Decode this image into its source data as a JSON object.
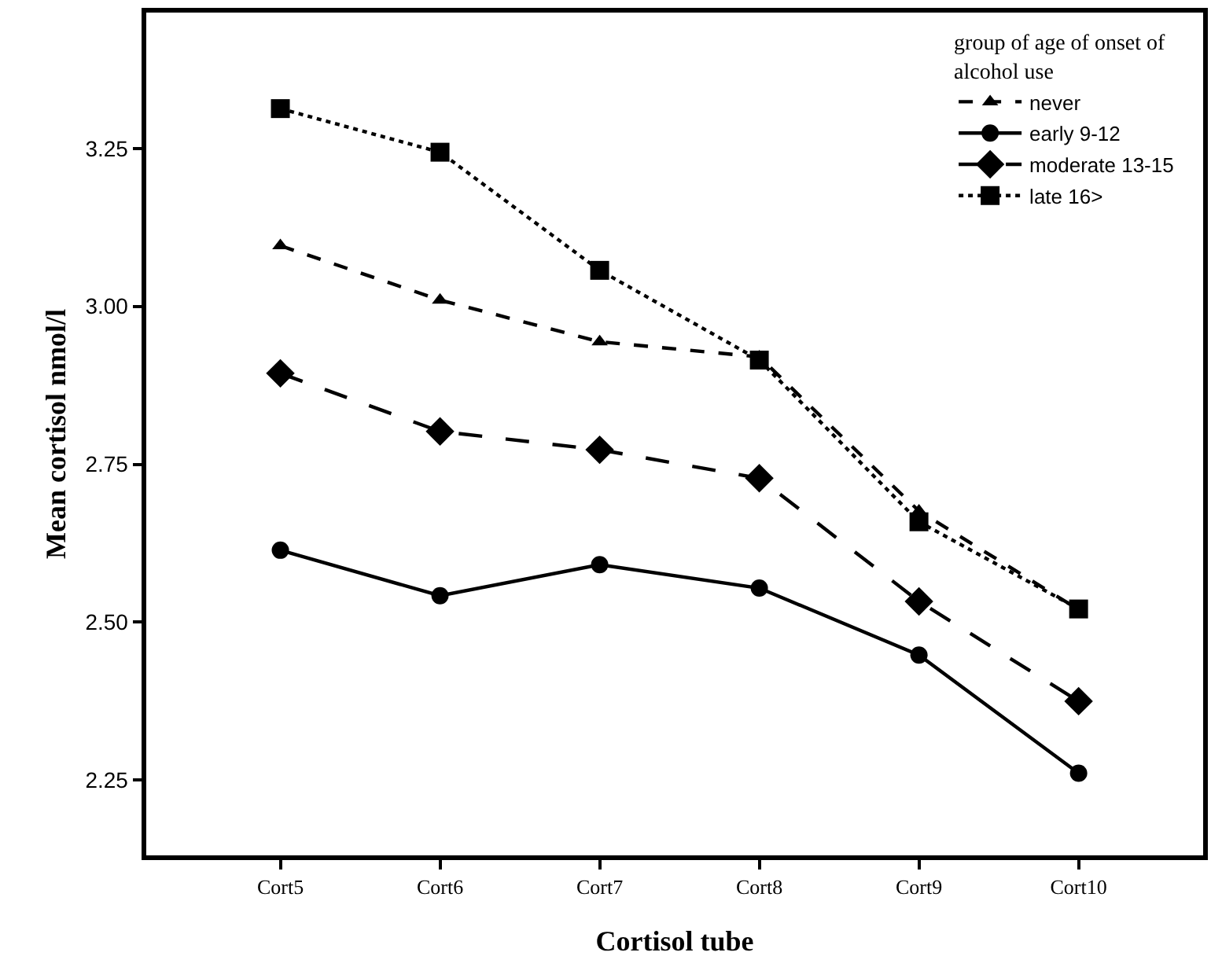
{
  "chart_data": {
    "type": "line",
    "xlabel": "Cortisol tube",
    "ylabel": "Mean cortisol nmol/l",
    "legend_title": "group of age of onset of alcohol use",
    "categories": [
      "Cort5",
      "Cort6",
      "Cort7",
      "Cort8",
      "Cort9",
      "Cort10"
    ],
    "ylim": [
      2.131,
      3.465
    ],
    "yticks": [
      {
        "value": 2.25,
        "label": "2.25"
      },
      {
        "value": 2.5,
        "label": "2.50"
      },
      {
        "value": 2.75,
        "label": "2.75"
      },
      {
        "value": 3.0,
        "label": "3.00"
      },
      {
        "value": 3.25,
        "label": "3.25"
      }
    ],
    "legend": "top right",
    "series": [
      {
        "name": "never",
        "color": "#000000",
        "marker": "triangle",
        "line_style": "dashed",
        "values": [
          3.096,
          3.01,
          2.944,
          2.92,
          2.676,
          2.52
        ]
      },
      {
        "name": "early 9-12",
        "color": "#000000",
        "marker": "circle",
        "line_style": "solid",
        "values": [
          2.614,
          2.542,
          2.591,
          2.554,
          2.448,
          2.261
        ]
      },
      {
        "name": "moderate 13-15",
        "color": "#000000",
        "marker": "diamond",
        "line_style": "longdash",
        "values": [
          2.894,
          2.802,
          2.773,
          2.728,
          2.533,
          2.375
        ]
      },
      {
        "name": "late 16>",
        "color": "#000000",
        "marker": "square",
        "line_style": "dotted",
        "values": [
          3.313,
          3.244,
          3.057,
          2.915,
          2.659,
          2.521
        ]
      }
    ]
  }
}
